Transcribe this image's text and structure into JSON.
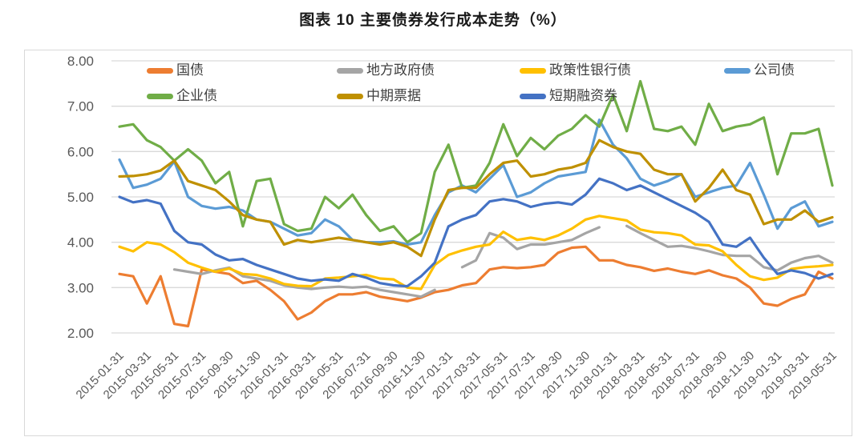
{
  "header": {
    "title": "图表 10 主要债券发行成本走势（%）"
  },
  "chart_data": {
    "type": "line",
    "title": "图表 10 主要债券发行成本走势（%）",
    "xlabel": "",
    "ylabel": "",
    "ylim": [
      2.0,
      8.0
    ],
    "grid": "horizontal",
    "legend_position": "top-inside-two-rows",
    "y_ticks": [
      {
        "value": 8,
        "label": "8.00"
      },
      {
        "value": 7,
        "label": "7.00"
      },
      {
        "value": 6,
        "label": "6.00"
      },
      {
        "value": 5,
        "label": "5.00"
      },
      {
        "value": 4,
        "label": "4.00"
      },
      {
        "value": 3,
        "label": "3.00"
      },
      {
        "value": 2,
        "label": "2.00"
      }
    ],
    "x_tick_labels": [
      "2015-01-31",
      "2015-03-31",
      "2015-05-31",
      "2015-07-31",
      "2015-09-30",
      "2015-11-30",
      "2016-01-31",
      "2016-03-31",
      "2016-05-31",
      "2016-07-31",
      "2016-09-30",
      "2016-11-30",
      "2017-01-31",
      "2017-03-31",
      "2017-05-31",
      "2017-07-31",
      "2017-09-30",
      "2017-11-30",
      "2018-01-31",
      "2018-03-31",
      "2018-05-31",
      "2018-07-31",
      "2018-09-30",
      "2018-11-30",
      "2019-01-31",
      "2019-03-31",
      "2019-05-31"
    ],
    "x_frequency": "monthly, 2015-01 to 2019-05 (53 points, labels every 2 months)",
    "series": [
      {
        "name": "国债",
        "color": "#ED7D31",
        "values": [
          3.3,
          3.25,
          2.65,
          3.25,
          2.2,
          2.15,
          3.4,
          3.35,
          3.3,
          3.1,
          3.15,
          2.95,
          2.7,
          2.3,
          2.45,
          2.7,
          2.85,
          2.85,
          2.9,
          2.8,
          2.75,
          2.7,
          2.78,
          2.9,
          2.95,
          3.05,
          3.1,
          3.4,
          3.45,
          3.43,
          3.45,
          3.5,
          3.77,
          3.88,
          3.9,
          3.6,
          3.6,
          3.5,
          3.45,
          3.37,
          3.42,
          3.35,
          3.3,
          3.38,
          3.27,
          3.2,
          3.0,
          2.65,
          2.6,
          2.75,
          2.85,
          3.35,
          3.2
        ]
      },
      {
        "name": "地方政府债",
        "color": "#A5A5A5",
        "values": [
          null,
          null,
          null,
          null,
          3.4,
          3.35,
          3.3,
          3.38,
          3.44,
          3.25,
          3.2,
          3.15,
          3.05,
          3.0,
          2.97,
          3.0,
          3.02,
          3.0,
          3.02,
          2.95,
          2.9,
          2.85,
          2.8,
          2.95,
          null,
          3.45,
          3.6,
          4.2,
          4.1,
          3.85,
          3.95,
          3.95,
          4.0,
          4.05,
          4.2,
          4.33,
          null,
          4.36,
          4.2,
          4.05,
          3.9,
          3.92,
          3.87,
          3.8,
          3.72,
          3.7,
          3.7,
          3.45,
          3.38,
          3.55,
          3.65,
          3.7,
          3.55
        ]
      },
      {
        "name": "政策性银行债",
        "color": "#FFC000",
        "values": [
          3.9,
          3.8,
          4.0,
          3.95,
          3.78,
          3.55,
          3.44,
          3.35,
          3.42,
          3.3,
          3.28,
          3.2,
          3.08,
          3.04,
          3.03,
          3.2,
          3.22,
          3.25,
          3.28,
          3.2,
          3.18,
          3.0,
          2.97,
          3.5,
          3.72,
          3.82,
          3.9,
          3.95,
          4.23,
          4.05,
          4.1,
          4.05,
          4.15,
          4.3,
          4.5,
          4.58,
          4.53,
          4.48,
          4.28,
          4.22,
          4.2,
          4.15,
          3.95,
          3.93,
          3.8,
          3.5,
          3.25,
          3.17,
          3.22,
          3.41,
          3.45,
          3.47,
          3.5
        ]
      },
      {
        "name": "公司债",
        "color": "#5B9BD5",
        "values": [
          5.82,
          5.2,
          5.27,
          5.4,
          5.78,
          5.0,
          4.8,
          4.74,
          4.78,
          4.7,
          4.5,
          4.45,
          4.3,
          4.15,
          4.2,
          4.5,
          4.35,
          4.05,
          4.0,
          4.0,
          4.02,
          3.95,
          4.0,
          4.6,
          5.1,
          5.25,
          5.1,
          5.4,
          5.7,
          5.0,
          5.1,
          5.3,
          5.45,
          5.5,
          5.55,
          6.7,
          6.15,
          5.85,
          5.4,
          5.25,
          5.35,
          5.5,
          5.0,
          5.1,
          5.2,
          5.25,
          5.75,
          5.05,
          4.3,
          4.75,
          4.9,
          4.35,
          4.45
        ]
      },
      {
        "name": "企业债",
        "color": "#70AD47",
        "values": [
          6.55,
          6.6,
          6.25,
          6.1,
          5.8,
          6.05,
          5.8,
          5.3,
          5.55,
          4.35,
          5.35,
          5.4,
          4.4,
          4.25,
          4.3,
          5.0,
          4.75,
          5.05,
          4.6,
          4.25,
          4.35,
          4.0,
          4.2,
          5.55,
          6.15,
          5.2,
          5.25,
          5.75,
          6.6,
          5.9,
          6.3,
          6.05,
          6.35,
          6.5,
          6.8,
          6.55,
          7.25,
          6.45,
          7.55,
          6.5,
          6.45,
          6.55,
          6.15,
          7.05,
          6.45,
          6.55,
          6.6,
          6.75,
          5.5,
          6.4,
          6.4,
          6.5,
          5.25
        ]
      },
      {
        "name": "中期票据",
        "color": "#BF9000",
        "values": [
          5.45,
          5.46,
          5.5,
          5.58,
          5.8,
          5.35,
          5.25,
          5.15,
          4.9,
          4.6,
          4.5,
          4.45,
          3.95,
          4.05,
          4.0,
          4.05,
          4.1,
          4.05,
          4.0,
          3.95,
          4.0,
          3.9,
          3.7,
          4.5,
          5.15,
          5.2,
          5.2,
          5.5,
          5.75,
          5.8,
          5.45,
          5.5,
          5.6,
          5.65,
          5.75,
          6.25,
          6.1,
          6.0,
          5.95,
          5.6,
          5.5,
          5.5,
          4.9,
          5.2,
          5.6,
          5.15,
          5.05,
          4.4,
          4.5,
          4.5,
          4.7,
          4.45,
          4.55
        ]
      },
      {
        "name": "短期融资券",
        "color": "#4472C4",
        "values": [
          5.0,
          4.88,
          4.93,
          4.85,
          4.25,
          4.0,
          3.95,
          3.73,
          3.6,
          3.63,
          3.5,
          3.4,
          3.3,
          3.2,
          3.15,
          3.18,
          3.15,
          3.3,
          3.22,
          3.1,
          3.05,
          3.03,
          3.25,
          3.55,
          4.35,
          4.5,
          4.6,
          4.9,
          4.95,
          4.9,
          4.78,
          4.85,
          4.88,
          4.83,
          5.05,
          5.4,
          5.3,
          5.15,
          5.25,
          5.1,
          4.95,
          4.8,
          4.65,
          4.45,
          3.95,
          3.9,
          4.1,
          3.66,
          3.3,
          3.38,
          3.32,
          3.2,
          3.3
        ]
      }
    ],
    "style": {
      "grid_color": "#D9D9D9",
      "axis_text_color": "#595959",
      "line_width": 3.2
    }
  }
}
